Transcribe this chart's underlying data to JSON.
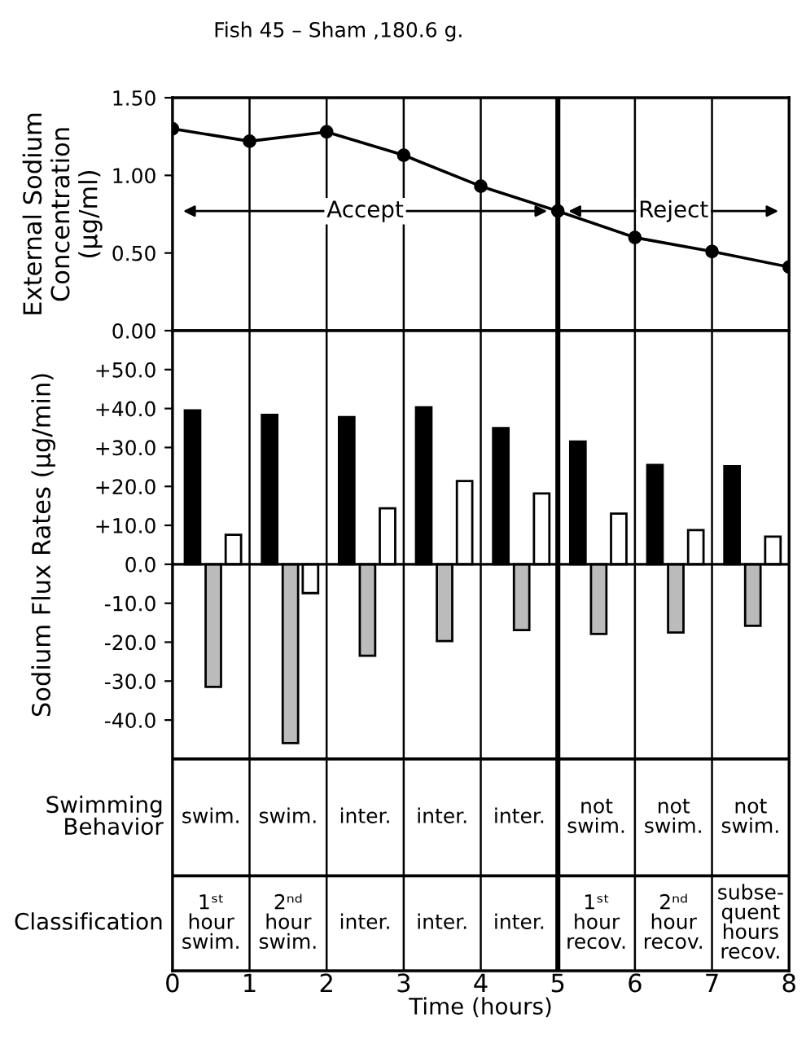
{
  "chart_data": [
    {
      "type": "line",
      "title": "Fish 45 – Sham ,180.6 g.",
      "ylabel": "External Sodium\nConcentration\n(μg/ml)",
      "x": [
        0,
        1,
        2,
        3,
        4,
        5,
        6,
        7,
        8
      ],
      "series": [
        {
          "color": "#000000",
          "values": [
            1.3,
            1.22,
            1.28,
            1.13,
            0.93,
            0.77,
            0.6,
            0.51,
            0.41
          ]
        }
      ],
      "xlim": [
        0,
        8
      ],
      "xticks": [
        0,
        1,
        2,
        3,
        4,
        5,
        6,
        7,
        8
      ],
      "ylim": [
        0,
        1.5
      ],
      "yticks": [
        {
          "value": 0,
          "label": "0.00"
        },
        {
          "value": 0.5,
          "label": "0.50"
        },
        {
          "value": 1.0,
          "label": "1.00"
        },
        {
          "value": 1.5,
          "label": "1.50"
        }
      ],
      "marker": "circle",
      "grid": "x",
      "tick_labels": "y",
      "ref_lines": [
        {
          "axis": "x",
          "value": 5
        }
      ],
      "annotations": [
        {
          "text": "Accept",
          "x": 5,
          "y": 0.77
        },
        {
          "text": "Reject",
          "x": 5,
          "y": 0.77
        }
      ]
    },
    {
      "type": "bar",
      "ylabel": "Sodium Flux Rates (μg/min)",
      "xlabel": "Time (hours)",
      "series": [
        {
          "color": "#000000",
          "x": [
            0.26,
            1.26,
            2.26,
            3.26,
            4.26,
            5.26,
            6.26,
            7.26
          ],
          "values": [
            39.5,
            38.4,
            37.8,
            40.3,
            35.0,
            31.5,
            25.5,
            25.2
          ]
        },
        {
          "color": "#bbbbbb",
          "x": [
            0.53,
            1.53,
            2.53,
            3.53,
            4.53,
            5.53,
            6.53,
            7.53
          ],
          "values": [
            -31.5,
            -45.9,
            -23.5,
            -19.7,
            -16.9,
            -17.9,
            -17.5,
            -15.8
          ]
        },
        {
          "color": "#ffffff",
          "x": [
            0.79,
            1.79,
            2.79,
            3.79,
            4.79,
            5.79,
            6.79,
            7.79
          ],
          "values": [
            7.6,
            -7.4,
            14.4,
            21.4,
            18.2,
            13.0,
            8.8,
            7.1
          ]
        }
      ],
      "xlim": [
        0,
        8
      ],
      "xticks": [
        0,
        1,
        2,
        3,
        4,
        5,
        6,
        7,
        8
      ],
      "ylim": [
        -104.4,
        60
      ],
      "yticks": [
        {
          "value": 50,
          "label": "+50.0"
        },
        {
          "value": 40,
          "label": "+40.0"
        },
        {
          "value": 30,
          "label": "+30.0"
        },
        {
          "value": 20,
          "label": "+20.0"
        },
        {
          "value": 10,
          "label": "+10.0"
        },
        {
          "value": 0,
          "label": "0.0"
        },
        {
          "value": -10,
          "label": "-10.0"
        },
        {
          "value": -20,
          "label": "-20.0"
        },
        {
          "value": -30,
          "label": "-30.0"
        },
        {
          "value": -40,
          "label": "-40.0"
        }
      ],
      "grid": "x",
      "ref_lines": [
        {
          "axis": "x",
          "value": 5
        },
        {
          "axis": "y",
          "value": -50
        },
        {
          "axis": "y",
          "value": -80
        }
      ],
      "annotations": [
        "Swimming\nBehavior",
        "Classification",
        "swim.",
        "swim.",
        "inter.",
        "inter.",
        "inter.",
        "not\nswim.",
        "not\nswim.",
        "not\nswim.",
        "1ˢᵗ\nhour\nswim.",
        "2ⁿᵈ\nhour\nswim.",
        "inter.",
        "inter.",
        "inter.",
        "1ˢᵗ\nhour\nrecov.",
        "2ⁿᵈ\nhour\nrecov.",
        "subse-\nquent\nhours\nrecov."
      ]
    }
  ]
}
